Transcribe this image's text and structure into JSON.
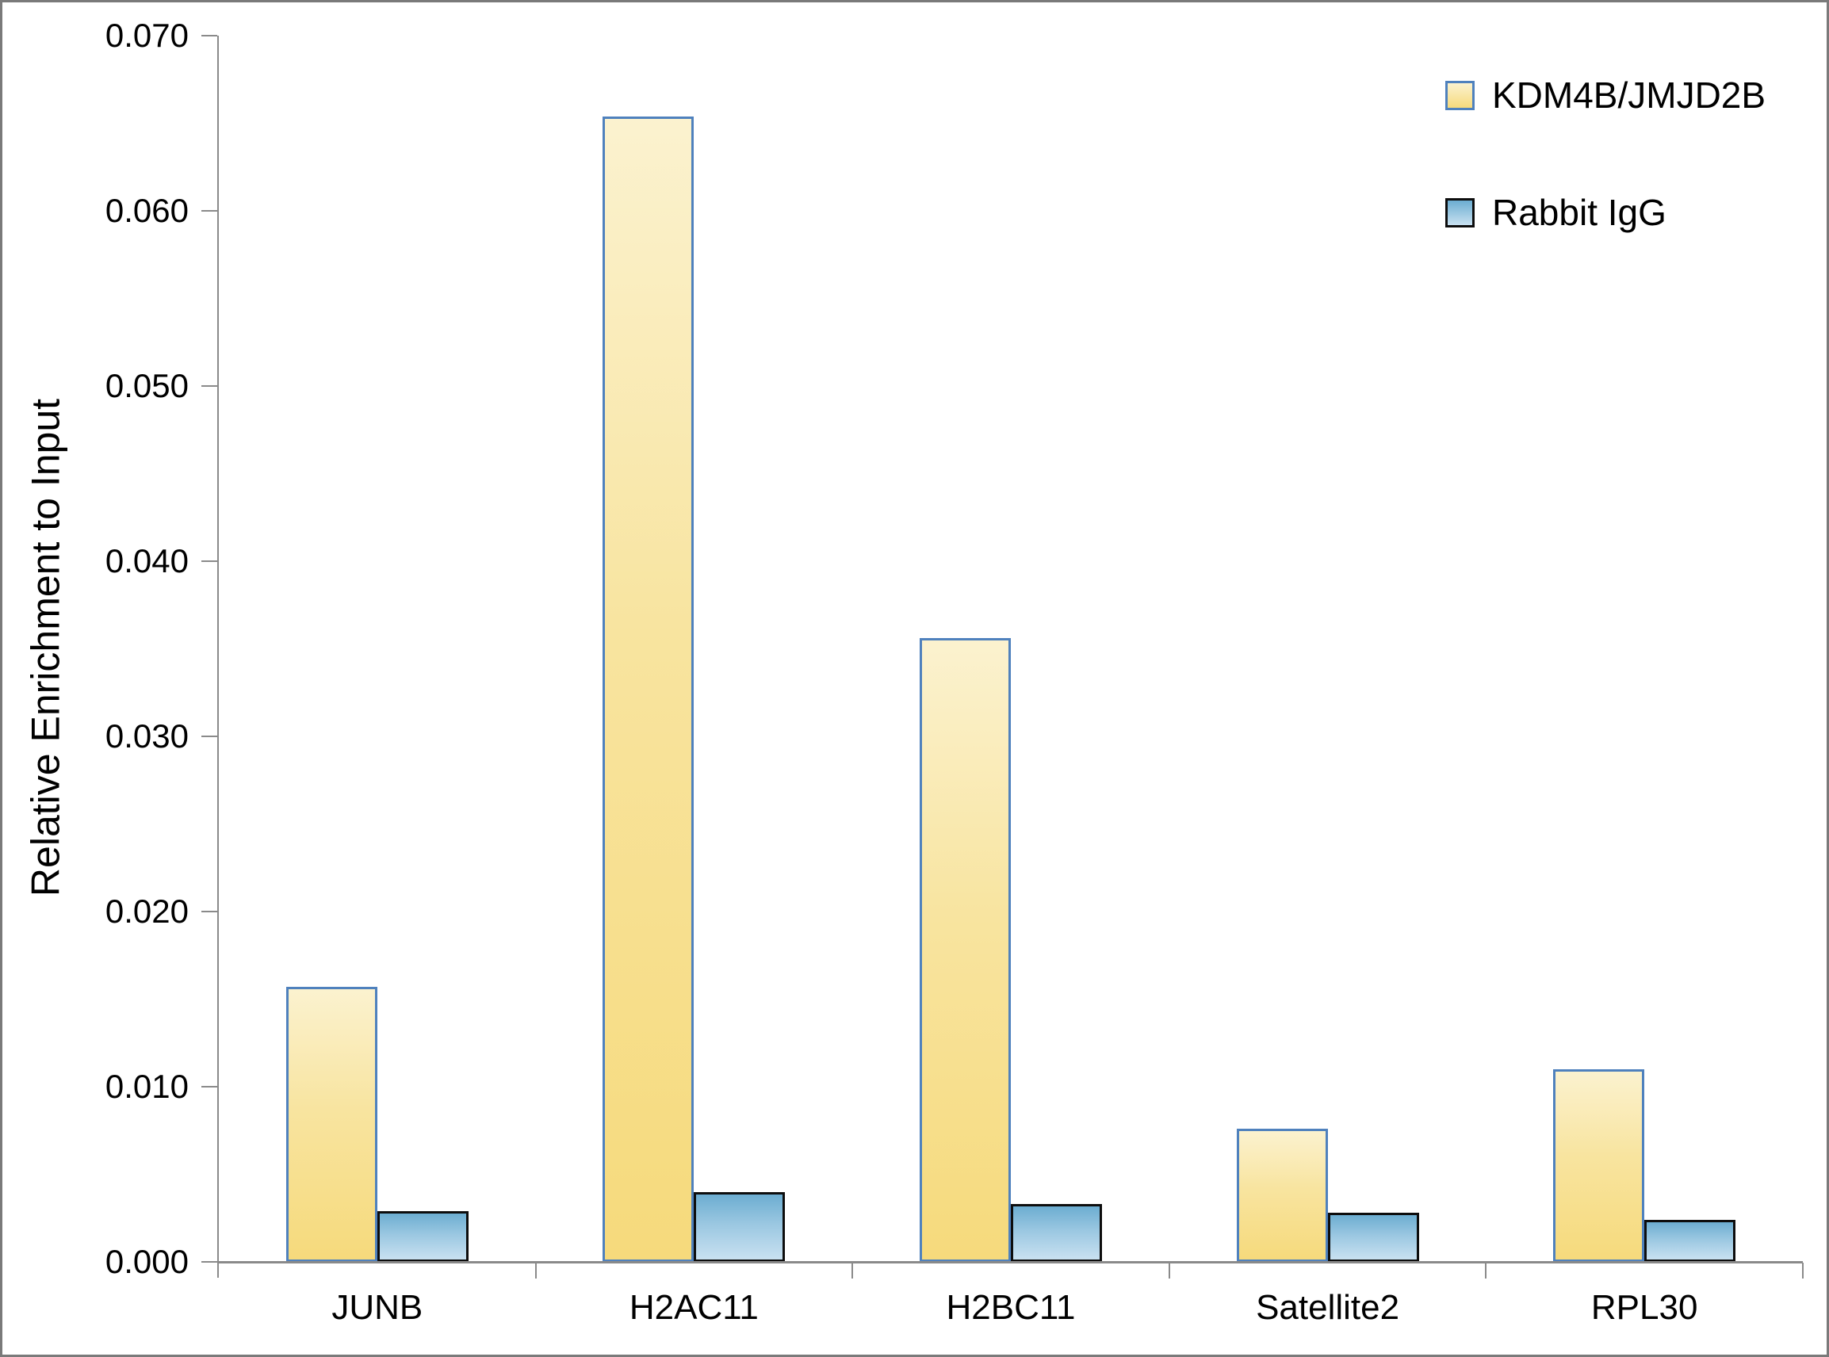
{
  "figure": {
    "frame_color": "#7a7a7a",
    "background_color": "#ffffff",
    "axis_color": "#8a8a8a",
    "text_color": "#000000"
  },
  "chart_data": {
    "type": "bar",
    "title": "",
    "xlabel": "",
    "ylabel": "Relative Enrichment to Input",
    "ylim": [
      0,
      0.07
    ],
    "ytick_step": 0.01,
    "ytick_labels": [
      "0.000",
      "0.010",
      "0.020",
      "0.030",
      "0.040",
      "0.050",
      "0.060",
      "0.070"
    ],
    "grid": false,
    "legend_position": "top-right",
    "categories": [
      "JUNB",
      "H2AC11",
      "H2BC11",
      "Satellite2",
      "RPL30"
    ],
    "series": [
      {
        "name": "KDM4B/JMJD2B",
        "values": [
          0.0157,
          0.0654,
          0.0356,
          0.0076,
          0.011
        ],
        "fill_top": "#fbf2cf",
        "fill_mid": "#f8e49f",
        "fill_bottom": "#f6da7c",
        "border_color": "#4f81bd"
      },
      {
        "name": "Rabbit IgG",
        "values": [
          0.0029,
          0.004,
          0.0033,
          0.0028,
          0.0024
        ],
        "fill_top": "#6cadd1",
        "fill_mid": "#9ac7e1",
        "fill_bottom": "#c9e1f1",
        "border_color": "#0d0d0d"
      }
    ]
  }
}
